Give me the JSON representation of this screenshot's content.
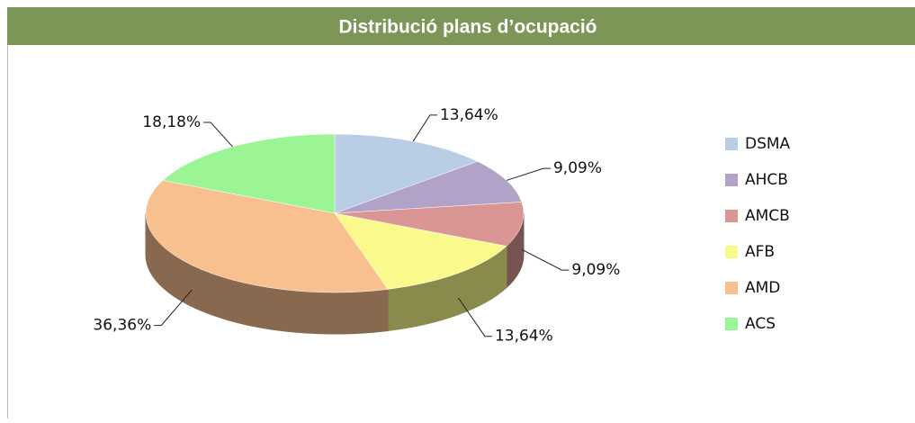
{
  "chart_data": {
    "type": "pie",
    "title": "Distribució plans d’ocupació",
    "categories": [
      "DSMA",
      "AHCB",
      "AMCB",
      "AFB",
      "AMD",
      "ACS"
    ],
    "values": [
      13.64,
      9.09,
      9.09,
      13.64,
      36.36,
      18.18
    ],
    "value_labels": [
      "13,64%",
      "9,09%",
      "9,09%",
      "13,64%",
      "36,36%",
      "18,18%"
    ],
    "colors": [
      "#b9cde5",
      "#b3a2c7",
      "#d99694",
      "#fafa8c",
      "#f8bf8f",
      "#9cf595"
    ],
    "legend": "right"
  }
}
